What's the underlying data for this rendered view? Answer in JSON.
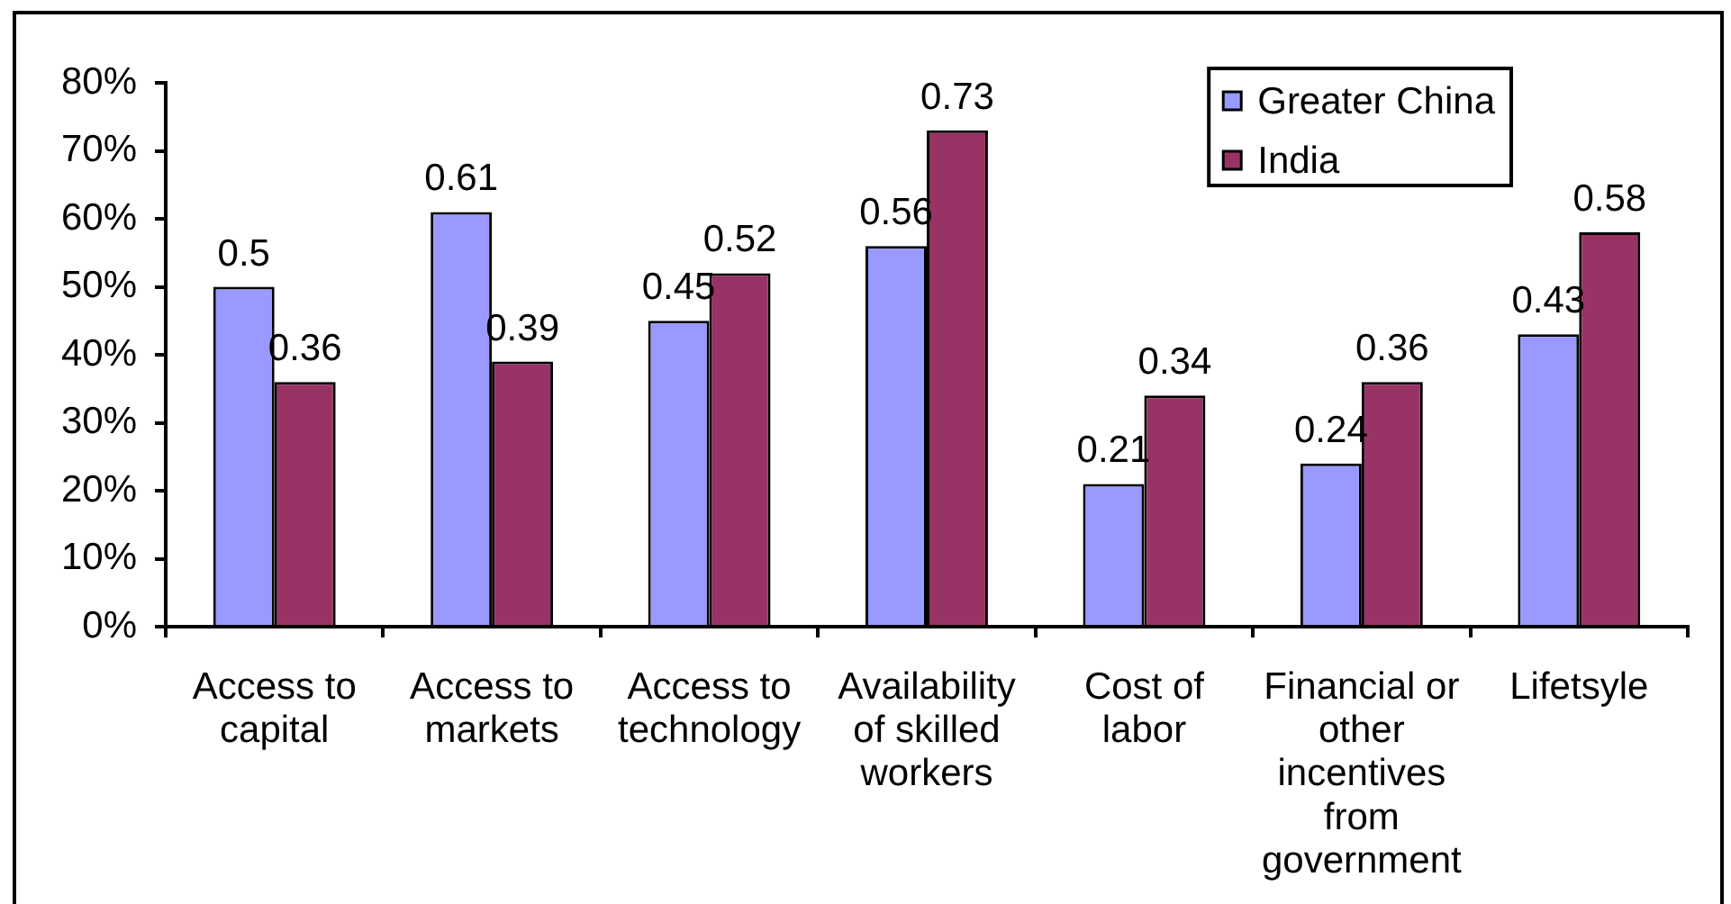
{
  "chart_data": {
    "type": "bar",
    "categories": [
      "Access to capital",
      "Access to markets",
      "Access to technology",
      "Availability of skilled workers",
      "Cost of labor",
      "Financial or other incentives from government",
      "Lifetsyle"
    ],
    "series": [
      {
        "name": "Greater China",
        "color": "#9999ff",
        "values": [
          0.5,
          0.61,
          0.45,
          0.56,
          0.21,
          0.24,
          0.43
        ]
      },
      {
        "name": "India",
        "color": "#993366",
        "values": [
          0.36,
          0.39,
          0.52,
          0.73,
          0.34,
          0.36,
          0.58
        ]
      }
    ],
    "ylim": [
      0,
      0.8
    ],
    "yticks": [
      {
        "value": 0,
        "label": "0%"
      },
      {
        "value": 0.1,
        "label": "10%"
      },
      {
        "value": 0.2,
        "label": "20%"
      },
      {
        "value": 0.3,
        "label": "30%"
      },
      {
        "value": 0.4,
        "label": "40%"
      },
      {
        "value": 0.5,
        "label": "50%"
      },
      {
        "value": 0.6,
        "label": "60%"
      },
      {
        "value": 0.7,
        "label": "70%"
      },
      {
        "value": 0.8,
        "label": "80%"
      }
    ],
    "grid": false,
    "legend": "top right",
    "data_labels": true
  }
}
